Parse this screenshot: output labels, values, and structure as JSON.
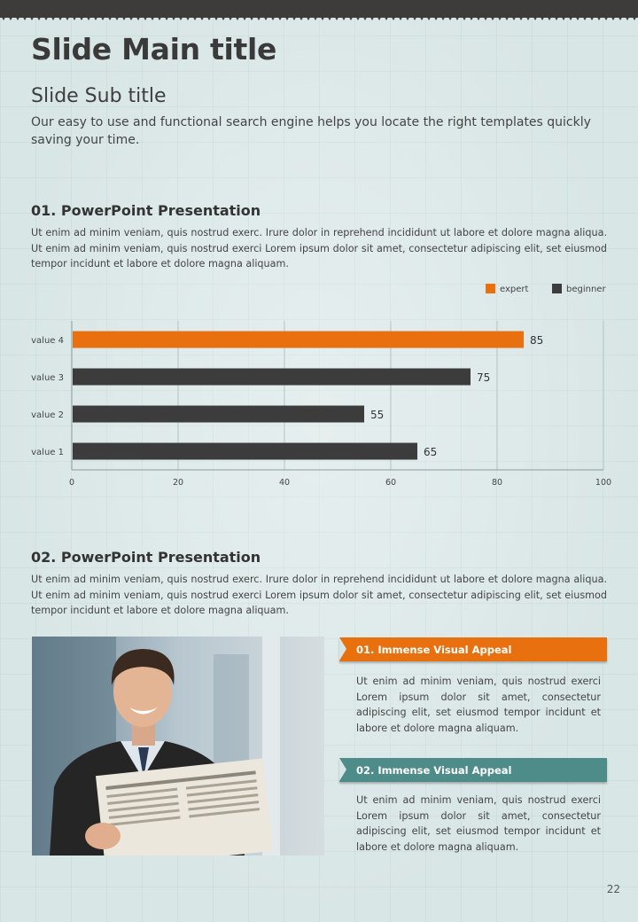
{
  "colors": {
    "accent_orange": "#e8700e",
    "dark_bar": "#3c3c3c",
    "teal": "#4d8c88",
    "top_band": "#3d3c3a"
  },
  "slide": {
    "title": "Slide Main title",
    "subtitle": "Slide Sub title",
    "intro": "Our easy to use and functional search engine helps you locate the right templates quickly saving your time.",
    "page_number": "22"
  },
  "sections": [
    {
      "heading": "01. PowerPoint Presentation",
      "body": "Ut enim ad minim veniam, quis nostrud exerc. Irure dolor in reprehend incididunt ut labore et dolore magna aliqua. Ut enim ad minim veniam, quis nostrud exerci  Lorem ipsum dolor sit amet, consectetur adipiscing elit, set eiusmod tempor incidunt et labore et dolore magna aliquam."
    },
    {
      "heading": "02. PowerPoint Presentation",
      "body": "Ut enim ad minim veniam, quis nostrud exerc. Irure dolor in reprehend incididunt ut labore et dolore magna aliqua. Ut enim ad minim veniam, quis nostrud exerci  Lorem ipsum dolor sit amet, consectetur adipiscing elit, set eiusmod tempor incidunt et labore et dolore magna aliquam."
    }
  ],
  "chart_data": {
    "type": "bar",
    "orientation": "horizontal",
    "categories": [
      "value 1",
      "value 2",
      "value 3",
      "value 4"
    ],
    "values": [
      65,
      55,
      75,
      85
    ],
    "bar_series": [
      "beginner",
      "beginner",
      "beginner",
      "expert"
    ],
    "legend": [
      {
        "name": "expert",
        "color": "#e8700e"
      },
      {
        "name": "beginner",
        "color": "#3c3c3c"
      }
    ],
    "legend_position": "top-right",
    "xlim": [
      0,
      100
    ],
    "xticks": [
      "0",
      "20",
      "40",
      "60",
      "80",
      "100"
    ],
    "grid": true,
    "title": "",
    "xlabel": "",
    "ylabel": ""
  },
  "cards": [
    {
      "title": "01. Immense Visual Appeal",
      "color": "#e8700e",
      "text": "Ut enim ad minim veniam, quis nostrud exerci Lorem ipsum dolor sit amet, consectetur adipiscing elit, set eiusmod tempor incidunt et labore et dolore magna aliquam."
    },
    {
      "title": "02. Immense Visual Appeal",
      "color": "#4d8c88",
      "text": "Ut enim ad minim veniam, quis nostrud exerci Lorem ipsum dolor sit amet, consectetur adipiscing elit, set eiusmod tempor incidunt et labore et dolore magna aliquam."
    }
  ]
}
